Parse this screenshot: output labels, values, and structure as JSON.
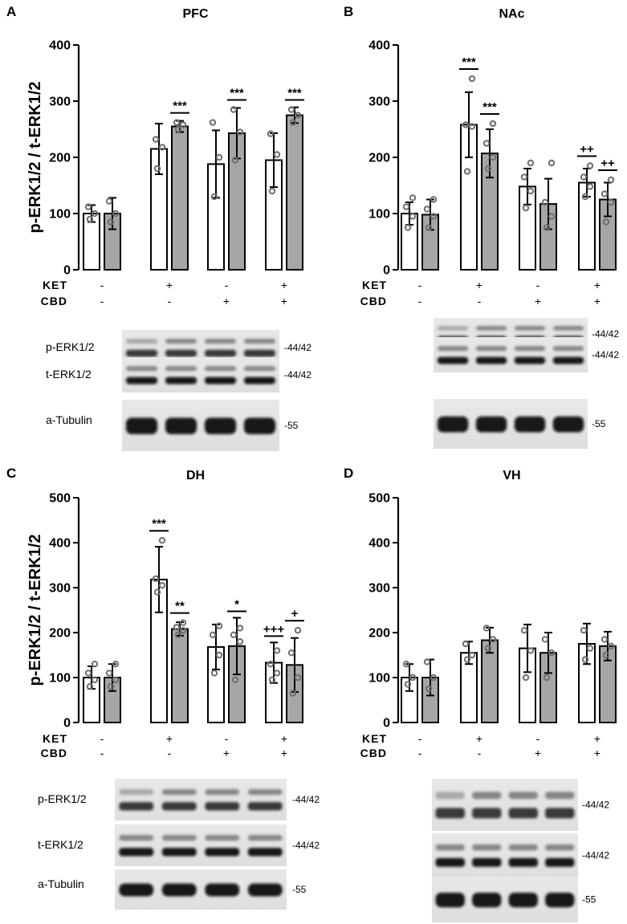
{
  "figure": {
    "row_labels": {
      "ket": "KET",
      "cbd": "CBD"
    },
    "groups": [
      {
        "ket": "-",
        "cbd": "-"
      },
      {
        "ket": "+",
        "cbd": "-"
      },
      {
        "ket": "-",
        "cbd": "+"
      },
      {
        "ket": "+",
        "cbd": "+"
      }
    ],
    "bar_colors": {
      "open": "#ffffff",
      "filled": "#a6a6a6",
      "dot_stroke": "#6e6e6e",
      "edge": "#000000"
    }
  },
  "chart_data": [
    {
      "panel": "A",
      "type": "bar",
      "title": "PFC",
      "ylabel": "p-ERK1/2 / t-ERK1/2",
      "ylim": [
        0,
        400
      ],
      "yticks": [
        "0",
        "100",
        "200",
        "300",
        "400"
      ],
      "series": [
        {
          "name": "open bars",
          "values": [
            100,
            215,
            188,
            195
          ],
          "errors": [
            15,
            45,
            60,
            48
          ],
          "points": [
            [
              90,
              100,
              112
            ],
            [
              180,
              218,
              232
            ],
            [
              130,
              200,
              262
            ],
            [
              140,
              205,
              242
            ]
          ]
        },
        {
          "name": "filled bars",
          "values": [
            100,
            255,
            243,
            275
          ],
          "errors": [
            28,
            10,
            45,
            14
          ],
          "points": [
            [
              85,
              100,
              122
            ],
            [
              250,
              258,
              262
            ],
            [
              195,
              245,
              285
            ],
            [
              262,
              275,
              285
            ]
          ]
        }
      ],
      "annotations": [
        {
          "group": 1,
          "bar": 1,
          "text": "***"
        },
        {
          "group": 2,
          "bar": 1,
          "text": "***"
        },
        {
          "group": 3,
          "bar": 1,
          "text": "***"
        }
      ],
      "blot": {
        "rows": [
          "p-ERK1/2",
          "t-ERK1/2",
          "a-Tubulin"
        ],
        "mw": [
          "-44/42",
          "-44/42",
          "-55"
        ],
        "lanes": 4
      }
    },
    {
      "panel": "B",
      "type": "bar",
      "title": "NAc",
      "ylabel": "",
      "ylim": [
        0,
        400
      ],
      "yticks": [
        "0",
        "100",
        "200",
        "300",
        "400"
      ],
      "series": [
        {
          "name": "open bars",
          "values": [
            100,
            258,
            148,
            155
          ],
          "errors": [
            20,
            58,
            32,
            25
          ],
          "points": [
            [
              75,
              95,
              112,
              128
            ],
            [
              175,
              255,
              258,
              340
            ],
            [
              110,
              140,
              165,
              190
            ],
            [
              130,
              148,
              165,
              185
            ]
          ]
        },
        {
          "name": "filled bars",
          "values": [
            98,
            207,
            117,
            125
          ],
          "errors": [
            27,
            43,
            45,
            30
          ],
          "points": [
            [
              75,
              95,
              108,
              125
            ],
            [
              180,
              200,
              225,
              260
            ],
            [
              75,
              95,
              120,
              190
            ],
            [
              85,
              120,
              135,
              160
            ]
          ]
        }
      ],
      "annotations": [
        {
          "group": 1,
          "bar": 0,
          "text": "***"
        },
        {
          "group": 1,
          "bar": 1,
          "text": "***"
        },
        {
          "group": 3,
          "bar": 0,
          "text": "++"
        },
        {
          "group": 3,
          "bar": 1,
          "text": "++"
        }
      ],
      "blot": {
        "rows": [],
        "mw": [
          "-44/42",
          "-44/42",
          "-55"
        ],
        "lanes": 4
      }
    },
    {
      "panel": "C",
      "type": "bar",
      "title": "DH",
      "ylabel": "p-ERK1/2 / t-ERK1/2",
      "ylim": [
        0,
        500
      ],
      "yticks": [
        "0",
        "100",
        "200",
        "300",
        "400",
        "500"
      ],
      "series": [
        {
          "name": "open bars",
          "values": [
            100,
            318,
            168,
            133
          ],
          "errors": [
            25,
            73,
            50,
            45
          ],
          "points": [
            [
              80,
              95,
              110,
              130
            ],
            [
              290,
              305,
              320,
              405
            ],
            [
              110,
              150,
              195,
              215
            ],
            [
              95,
              110,
              130,
              160
            ]
          ]
        },
        {
          "name": "filled bars",
          "values": [
            100,
            208,
            170,
            128
          ],
          "errors": [
            30,
            15,
            63,
            60
          ],
          "points": [
            [
              80,
              95,
              110,
              130
            ],
            [
              195,
              205,
              212,
              222
            ],
            [
              95,
              180,
              195,
              210
            ],
            [
              65,
              100,
              155,
              205
            ]
          ]
        }
      ],
      "annotations": [
        {
          "group": 1,
          "bar": 0,
          "text": "***"
        },
        {
          "group": 1,
          "bar": 1,
          "text": "**"
        },
        {
          "group": 2,
          "bar": 1,
          "text": "*"
        },
        {
          "group": 3,
          "bar": 0,
          "text": "+++"
        },
        {
          "group": 3,
          "bar": 1,
          "text": "+"
        }
      ],
      "blot": {
        "rows": [
          "p-ERK1/2",
          "t-ERK1/2",
          "a-Tubulin"
        ],
        "mw": [
          "-44/42",
          "-44/42",
          "-55"
        ],
        "lanes": 4
      }
    },
    {
      "panel": "D",
      "type": "bar",
      "title": "VH",
      "ylabel": "",
      "ylim": [
        0,
        500
      ],
      "yticks": [
        "0",
        "100",
        "200",
        "300",
        "400",
        "500"
      ],
      "series": [
        {
          "name": "open bars",
          "values": [
            100,
            155,
            165,
            175
          ],
          "errors": [
            30,
            25,
            53,
            45
          ],
          "points": [
            [
              85,
              100,
              130
            ],
            [
              140,
              150,
              175
            ],
            [
              100,
              160,
              205
            ],
            [
              140,
              165,
              205
            ]
          ]
        },
        {
          "name": "filled bars",
          "values": [
            100,
            183,
            155,
            170
          ],
          "errors": [
            40,
            28,
            45,
            32
          ],
          "points": [
            [
              75,
              100,
              135
            ],
            [
              165,
              185,
              210
            ],
            [
              100,
              155,
              185
            ],
            [
              150,
              170,
              185
            ]
          ]
        }
      ],
      "annotations": [],
      "blot": {
        "rows": [],
        "mw": [
          "-44/42",
          "-44/42",
          "-55"
        ],
        "lanes": 4
      }
    }
  ]
}
